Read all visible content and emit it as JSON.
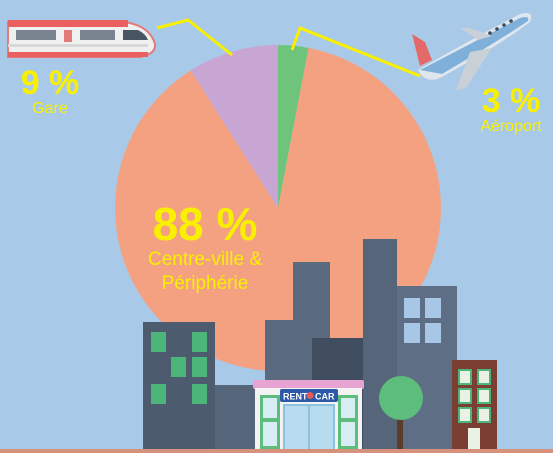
{
  "chart_data": {
    "type": "pie",
    "title": "",
    "slices": [
      {
        "label": "Aéroport",
        "value": 3,
        "display": "3 %",
        "color": "#6ec47a"
      },
      {
        "label": "Centre-ville & Périphérie",
        "value": 88,
        "display": "88 %",
        "color": "#f4a181"
      },
      {
        "label": "Gare",
        "value": 9,
        "display": "9 %",
        "color": "#c8a6d3"
      }
    ],
    "legend": "none",
    "label_color": "#f9f000",
    "background_color": "#a9c9e9"
  },
  "labels": {
    "gare_pct": "9 %",
    "gare_name": "Gare",
    "aeroport_pct": "3 %",
    "aeroport_name": "Aéroport",
    "centre_pct": "88 %",
    "centre_name_line1": "Centre-ville &",
    "centre_name_line2": "Périphérie"
  },
  "illustration": {
    "shop_sign_left": "RENT",
    "shop_sign_right": "CAR",
    "icons": [
      "train-icon",
      "airplane-icon",
      "city-buildings",
      "tree-icon",
      "rental-shop"
    ]
  }
}
